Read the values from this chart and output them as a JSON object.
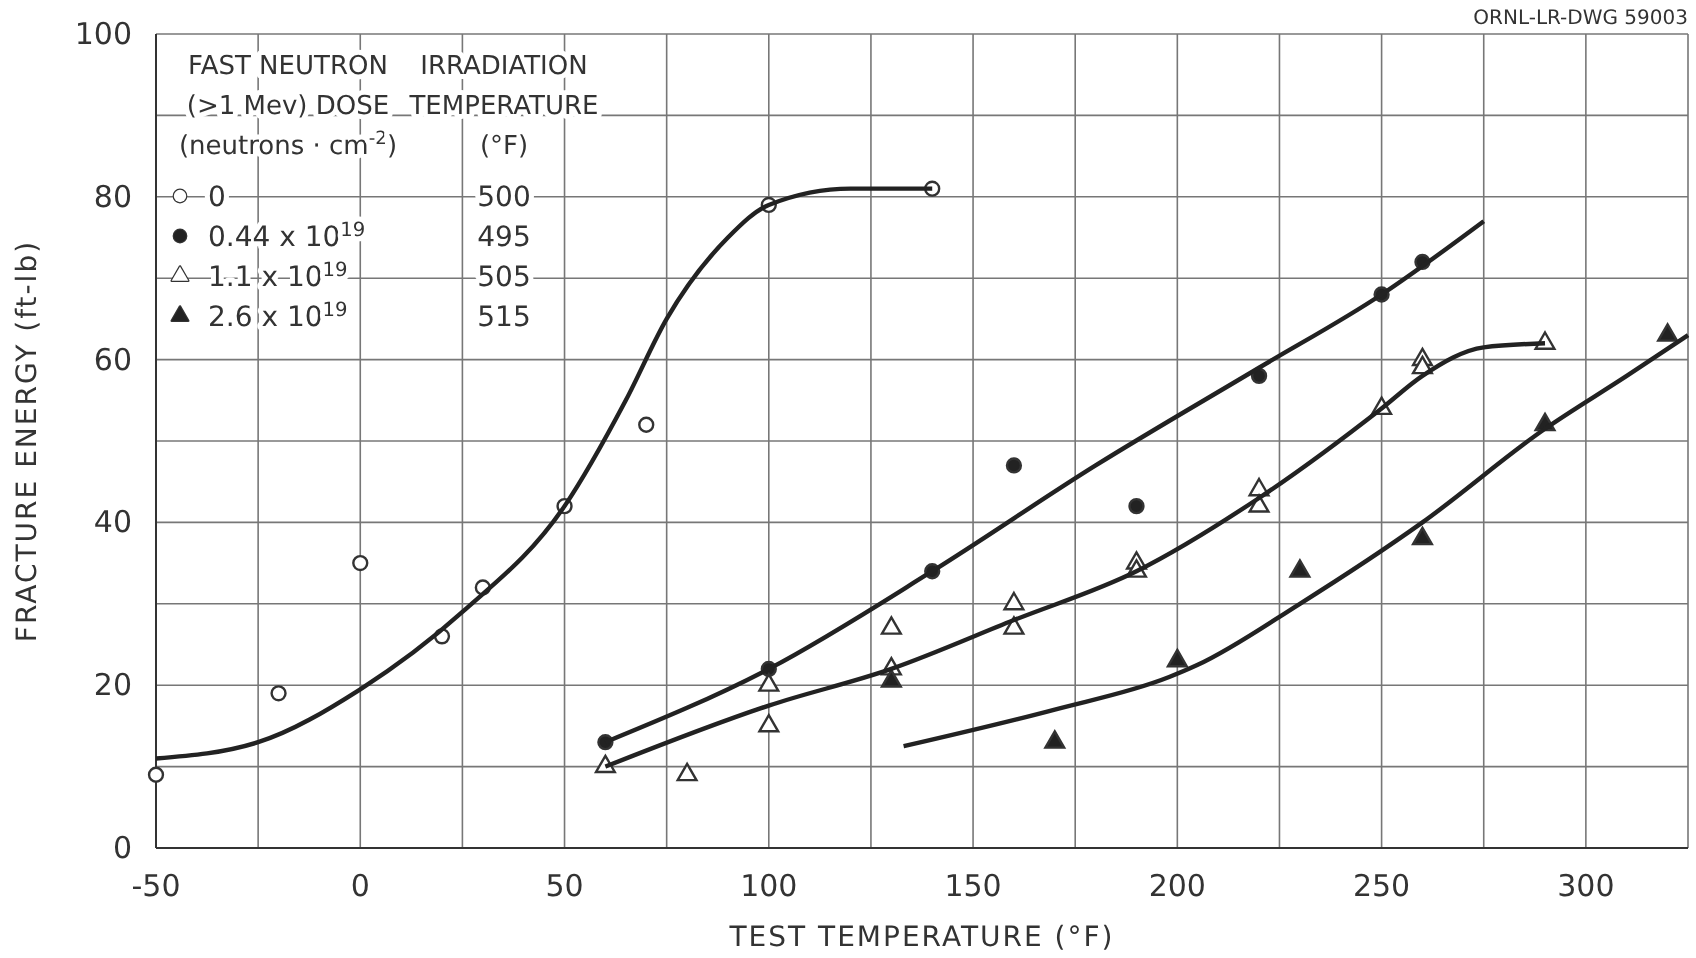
{
  "chart_data": {
    "type": "scatter",
    "xlabel": "TEST TEMPERATURE (°F)",
    "ylabel": "FRACTURE ENERGY (ft-lb)",
    "legend_title": "FAST NEUTRON\n(>1 Mev) DOSE\n(neutrons · cm$^{-2}$)",
    "annotations": [
      "IRRADIATION\nTEMPERATURE\n(°F)",
      "500",
      "495",
      "505",
      "515",
      "ORNL-LR-DWG 59003"
    ],
    "xlim": [
      -50,
      325
    ],
    "xticks": [
      -50,
      0,
      50,
      100,
      150,
      200,
      250,
      300
    ],
    "ylim": [
      0,
      100
    ],
    "yticks": [
      0,
      20,
      40,
      60,
      80,
      100
    ],
    "grid": true,
    "legend": "top left",
    "series": [
      {
        "name": "0",
        "color": "#ffffff",
        "marker": "circle",
        "x": [
          -50,
          -20,
          0,
          20,
          30,
          50,
          70,
          100,
          140
        ],
        "values": [
          9,
          19,
          35,
          26,
          32,
          42,
          52,
          79,
          81
        ]
      },
      {
        "name": "0.44 x 10$^{19}$",
        "color": "#222222",
        "marker": "circle",
        "x": [
          60,
          100,
          140,
          160,
          190,
          220,
          250,
          260
        ],
        "values": [
          13,
          22,
          34,
          47,
          42,
          58,
          68,
          72
        ]
      },
      {
        "name": "1.1 x 10$^{19}$",
        "color": "#ffffff",
        "marker": "triangle",
        "x": [
          60,
          80,
          100,
          100,
          130,
          130,
          160,
          160,
          190,
          190,
          220,
          220,
          250,
          260,
          260,
          290
        ],
        "values": [
          10,
          9,
          20,
          15,
          27,
          22,
          30,
          27,
          35,
          34,
          44,
          42,
          54,
          60,
          59,
          62
        ]
      },
      {
        "name": "2.6 x 10$^{19}$",
        "color": "#222222",
        "marker": "triangle",
        "x": [
          130,
          170,
          200,
          230,
          260,
          290,
          320
        ],
        "values": [
          20.5,
          13,
          23,
          34,
          38,
          52,
          63
        ]
      },
      {
        "type": "line",
        "color": "#222222",
        "marker": "none",
        "x": [
          -50,
          -25,
          0,
          25,
          50,
          65,
          75,
          90,
          100,
          120,
          140
        ],
        "values": [
          11,
          13,
          19.5,
          29,
          42,
          55,
          65,
          75,
          79,
          81,
          81
        ]
      },
      {
        "type": "line",
        "color": "#222222",
        "marker": "none",
        "x": [
          60,
          100,
          140,
          180,
          220,
          250,
          275
        ],
        "values": [
          13,
          22,
          34,
          47,
          59,
          68,
          77
        ]
      },
      {
        "type": "line",
        "color": "#222222",
        "marker": "none",
        "x": [
          60,
          100,
          130,
          160,
          190,
          220,
          250,
          260,
          275,
          290
        ],
        "values": [
          10,
          17.5,
          22,
          28,
          34,
          43,
          54,
          58,
          61.5,
          62
        ]
      },
      {
        "type": "line",
        "color": "#222222",
        "marker": "none",
        "x": [
          133,
          170,
          198,
          205,
          230,
          260,
          290,
          310,
          325
        ],
        "values": [
          12.5,
          17,
          21,
          22.5,
          30,
          40,
          51.5,
          58,
          63
        ]
      }
    ]
  }
}
